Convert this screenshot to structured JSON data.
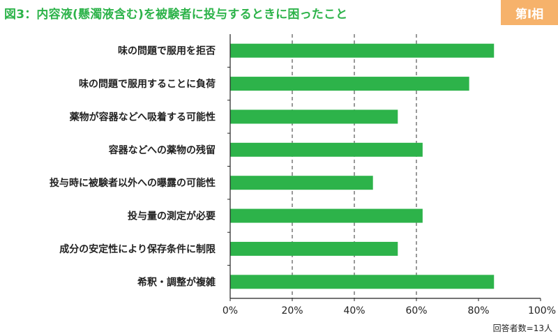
{
  "title": "図3：内容液(懸濁液含む)を被験者に投与するときに困ったこと",
  "badge": "第I相",
  "footnote": "回答者数=13人",
  "colors": {
    "bar": "#2db34a",
    "title": "#2db34a",
    "badge": "#f6b26b",
    "axis": "#222222",
    "grid": "#333333"
  },
  "chart_data": {
    "type": "bar",
    "orientation": "horizontal",
    "categories": [
      "味の問題で服用を拒否",
      "味の問題で服用することに負荷",
      "薬物が容器などへ吸着する可能性",
      "容器などへの薬物の残留",
      "投与時に被験者以外への曝露の可能性",
      "投与量の測定が必要",
      "成分の安定性により保存条件に制限",
      "希釈・調整が複雑"
    ],
    "values": [
      85,
      77,
      54,
      62,
      46,
      62,
      54,
      85
    ],
    "xlim": [
      0,
      100
    ],
    "ticks": [
      "0%",
      "20%",
      "40%",
      "60%",
      "80%",
      "100%"
    ],
    "grid": "dashed vertical at 20%, 40%, 60%"
  }
}
